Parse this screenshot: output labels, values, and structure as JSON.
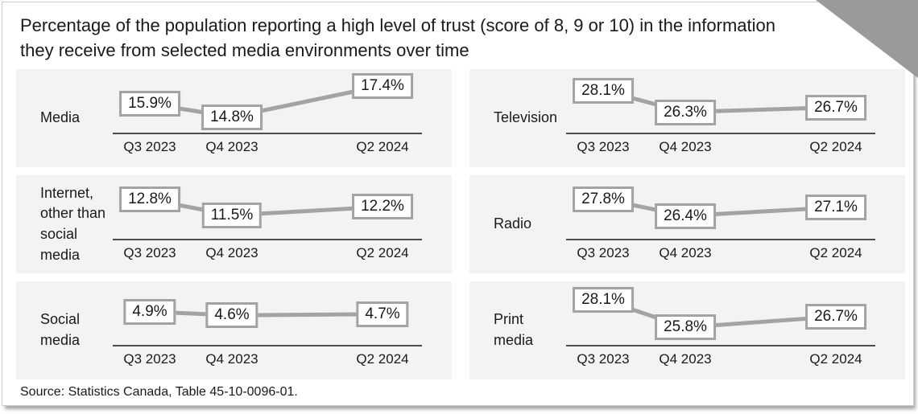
{
  "title": "Percentage of the population reporting a high level of trust (score of 8, 9 or 10) in the information they receive from selected media environments over time",
  "source": "Source: Statistics Canada, Table 45-10-0096-01.",
  "colors": {
    "panel_background": "#f3f3f3",
    "trend_line": "#a3a3a3",
    "value_box_border": "#a3a3a3",
    "value_box_fill": "#ffffff",
    "axis_line": "#4d4d4d",
    "text": "#1a1a1a",
    "corner_triangle": "#9a9a9a",
    "card_border": "#cbcbcb"
  },
  "chart_data": {
    "type": "line",
    "unit": "%",
    "layout": "small-multiples, 2 columns x 3 rows, value labels in boxes on each point",
    "categories": [
      "Q3 2023",
      "Q4 2023",
      "Q2 2024"
    ],
    "x_quarter_offsets": [
      0,
      1,
      3
    ],
    "panels": [
      {
        "name": "Media",
        "values": [
          15.9,
          14.8,
          17.4
        ],
        "labels": [
          "15.9%",
          "14.8%",
          "17.4%"
        ]
      },
      {
        "name": "Television",
        "values": [
          28.1,
          26.3,
          26.7
        ],
        "labels": [
          "28.1%",
          "26.3%",
          "26.7%"
        ]
      },
      {
        "name": "Internet, other than social media",
        "values": [
          12.8,
          11.5,
          12.2
        ],
        "labels": [
          "12.8%",
          "11.5%",
          "12.2%"
        ]
      },
      {
        "name": "Radio",
        "values": [
          27.8,
          26.4,
          27.1
        ],
        "labels": [
          "27.8%",
          "26.4%",
          "27.1%"
        ]
      },
      {
        "name": "Social media",
        "values": [
          4.9,
          4.6,
          4.7
        ],
        "labels": [
          "4.9%",
          "4.6%",
          "4.7%"
        ]
      },
      {
        "name": "Print media",
        "values": [
          28.1,
          25.8,
          26.7
        ],
        "labels": [
          "28.1%",
          "25.8%",
          "26.7%"
        ]
      }
    ]
  }
}
